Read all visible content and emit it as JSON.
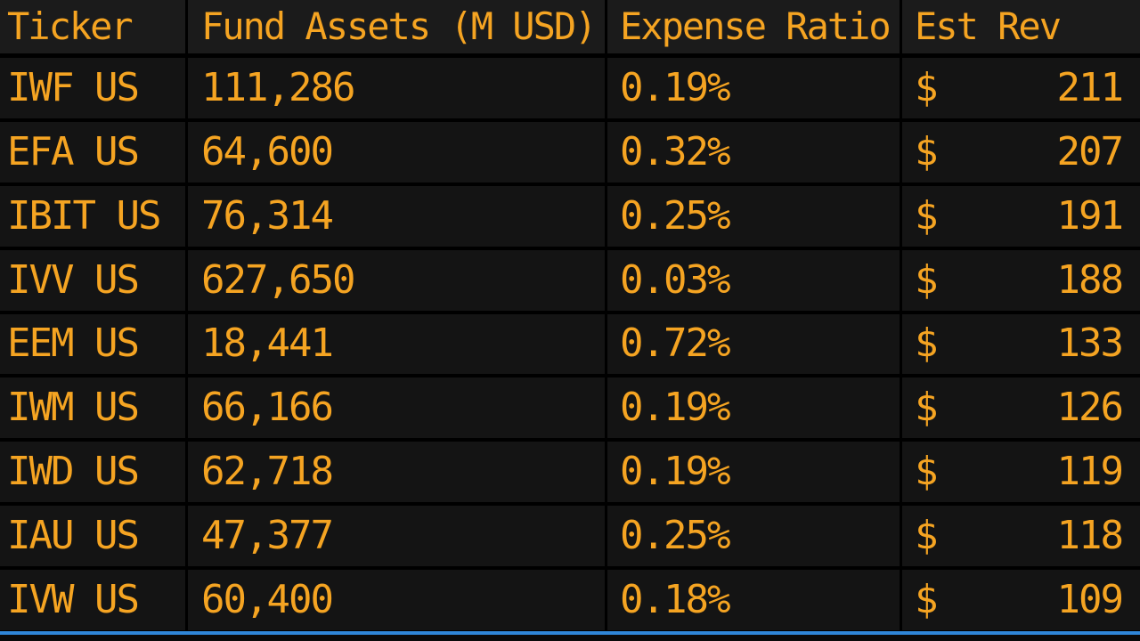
{
  "table": {
    "headers": [
      "Ticker",
      "Fund Assets (M USD)",
      "Expense Ratio",
      "Est Rev"
    ],
    "currency_symbol": "$",
    "rows": [
      {
        "ticker": "IWF US",
        "assets": "111,286",
        "expense": "0.19%",
        "rev": "211"
      },
      {
        "ticker": "EFA US",
        "assets": "64,600",
        "expense": "0.32%",
        "rev": "207"
      },
      {
        "ticker": "IBIT US",
        "assets": "76,314",
        "expense": "0.25%",
        "rev": "191"
      },
      {
        "ticker": "IVV US",
        "assets": "627,650",
        "expense": "0.03%",
        "rev": "188"
      },
      {
        "ticker": "EEM US",
        "assets": "18,441",
        "expense": "0.72%",
        "rev": "133"
      },
      {
        "ticker": "IWM US",
        "assets": "66,166",
        "expense": "0.19%",
        "rev": "126"
      },
      {
        "ticker": "IWD US",
        "assets": "62,718",
        "expense": "0.19%",
        "rev": "119"
      },
      {
        "ticker": "IAU US",
        "assets": "47,377",
        "expense": "0.25%",
        "rev": "118"
      },
      {
        "ticker": "IVW US",
        "assets": "60,400",
        "expense": "0.18%",
        "rev": "109"
      }
    ]
  },
  "colors": {
    "text": "#f5a422",
    "cell_bg": "#141414",
    "header_bg": "#1b1b1b",
    "grid_line": "#000000",
    "accent_line": "#2f86d8"
  }
}
